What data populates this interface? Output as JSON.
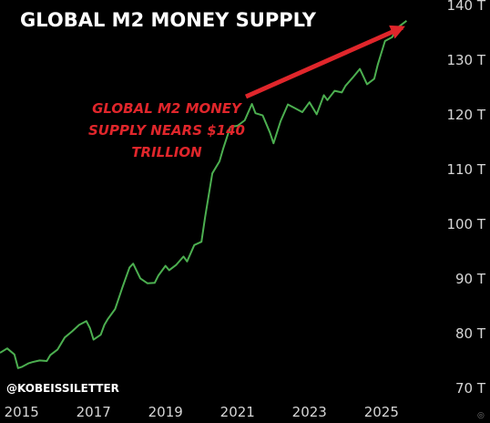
{
  "chart_data": {
    "type": "line",
    "title": "GLOBAL M2 MONEY SUPPLY",
    "xlabel": "",
    "ylabel": "",
    "x_tick_labels": [
      "2015",
      "2017",
      "2019",
      "2021",
      "2023",
      "2025"
    ],
    "y_tick_labels": [
      "70 T",
      "80 T",
      "90 T",
      "100 T",
      "110 T",
      "120 T",
      "130 T",
      "140 T"
    ],
    "xlim": [
      2014.4,
      2026.6
    ],
    "ylim": [
      70,
      140
    ],
    "y_scale": "linear",
    "grid": false,
    "series": [
      {
        "color": "#4caf50",
        "x": [
          2014.4,
          2014.6,
          2014.8,
          2014.9,
          2015.0,
          2015.2,
          2015.3,
          2015.5,
          2015.7,
          2015.8,
          2016.0,
          2016.2,
          2016.4,
          2016.6,
          2016.8,
          2016.9,
          2017.0,
          2017.2,
          2017.3,
          2017.4,
          2017.6,
          2017.8,
          2018.0,
          2018.1,
          2018.3,
          2018.5,
          2018.7,
          2018.8,
          2019.0,
          2019.1,
          2019.3,
          2019.5,
          2019.6,
          2019.8,
          2020.0,
          2020.1,
          2020.3,
          2020.5,
          2020.6,
          2020.8,
          2021.0,
          2021.2,
          2021.4,
          2021.5,
          2021.7,
          2021.9,
          2022.0,
          2022.2,
          2022.4,
          2022.6,
          2022.8,
          2023.0,
          2023.2,
          2023.4,
          2023.5,
          2023.7,
          2023.9,
          2024.0,
          2024.2,
          2024.4,
          2024.6,
          2024.8,
          2024.9,
          2025.1,
          2025.3,
          2025.4,
          2025.5,
          2025.7
        ],
        "y": [
          76.5,
          77.3,
          76.2,
          73.7,
          73.9,
          74.6,
          74.8,
          75.1,
          75.0,
          76.1,
          77.1,
          79.3,
          80.4,
          81.6,
          82.3,
          81.0,
          78.9,
          79.8,
          81.6,
          82.7,
          84.5,
          88.4,
          92.1,
          92.8,
          90.1,
          89.2,
          89.3,
          90.6,
          92.4,
          91.6,
          92.6,
          94.1,
          93.2,
          96.2,
          96.8,
          101.3,
          109.3,
          111.5,
          113.8,
          117.8,
          118.0,
          119.0,
          122.0,
          120.3,
          119.9,
          116.8,
          114.8,
          118.9,
          121.9,
          121.2,
          120.5,
          122.3,
          120.1,
          123.6,
          122.7,
          124.4,
          124.1,
          125.3,
          126.8,
          128.4,
          125.6,
          126.6,
          129.2,
          133.5,
          134.2,
          135.6,
          136.2,
          137.2
        ]
      }
    ],
    "annotation": {
      "lines": [
        "GLOBAL M2 MONEY",
        "SUPPLY NEARS $140",
        "TRILLION"
      ],
      "color": "#e0262b"
    }
  },
  "watermark": "@KOBEISSILETTER",
  "corner_mark": "◎"
}
